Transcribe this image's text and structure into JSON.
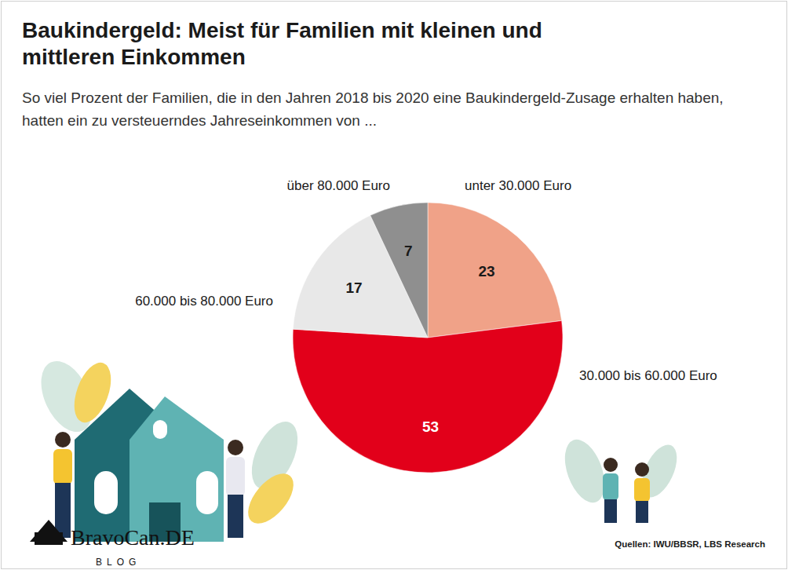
{
  "chart_data": {
    "type": "pie",
    "title": "Baukindergeld: Meist für Familien mit kleinen und mittleren Einkommen",
    "subtitle": "So viel Prozent der Familien, die in den Jahren 2018 bis 2020 eine Baukindergeld-Zusage erhalten haben, hatten ein zu versteuerndes Jahreseinkommen von ...",
    "categories": [
      "unter 30.000 Euro",
      "30.000 bis 60.000 Euro",
      "60.000 bis 80.000 Euro",
      "über 80.000 Euro"
    ],
    "values": [
      23,
      53,
      17,
      7
    ],
    "colors": [
      "#f0a288",
      "#e2001a",
      "#e8e8e8",
      "#8f8f8f"
    ],
    "data_labels": true,
    "source": "Quellen: IWU/BBSR, LBS Research",
    "annotations": [
      "BravoCan.DE",
      "BLOG"
    ]
  }
}
